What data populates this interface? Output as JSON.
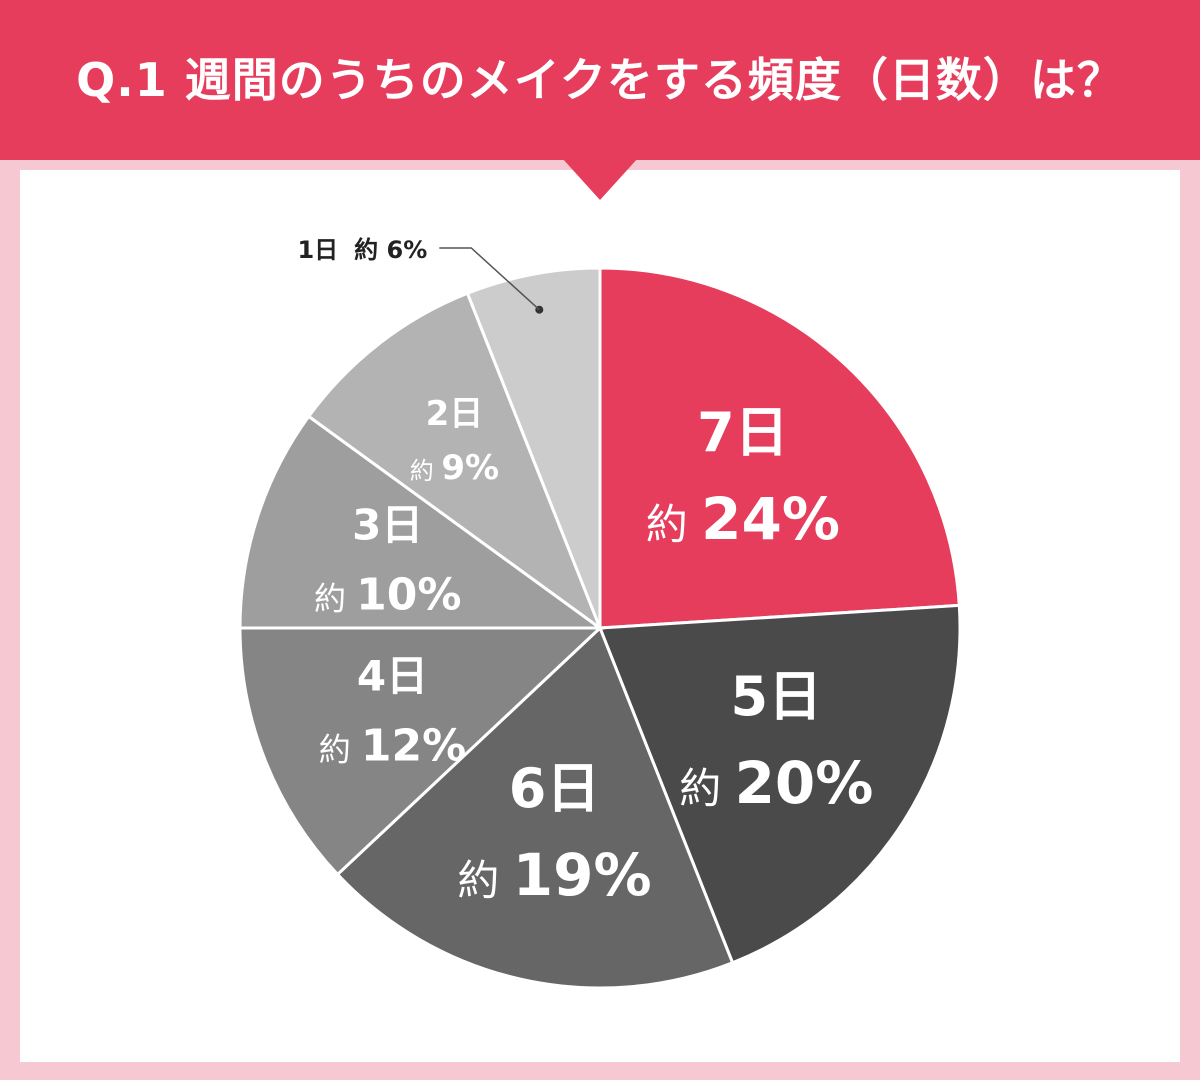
{
  "chart_data": {
    "type": "pie",
    "title": "Q.1 週間のうちのメイクをする頻度（日数）は？",
    "slices": [
      {
        "label": "7日",
        "prefix": "約",
        "value": 24,
        "display": "24%",
        "color": "#e63d5c"
      },
      {
        "label": "5日",
        "prefix": "約",
        "value": 20,
        "display": "20%",
        "color": "#4a4a4a"
      },
      {
        "label": "6日",
        "prefix": "約",
        "value": 19,
        "display": "19%",
        "color": "#666666"
      },
      {
        "label": "4日",
        "prefix": "約",
        "value": 12,
        "display": "12%",
        "color": "#858585"
      },
      {
        "label": "3日",
        "prefix": "約",
        "value": 10,
        "display": "10%",
        "color": "#9e9e9e"
      },
      {
        "label": "2日",
        "prefix": "約",
        "value": 9,
        "display": "9%",
        "color": "#b3b3b3"
      },
      {
        "label": "1日",
        "prefix": "約",
        "value": 6,
        "display": "6%",
        "color": "#cccccc",
        "external": true
      }
    ]
  }
}
